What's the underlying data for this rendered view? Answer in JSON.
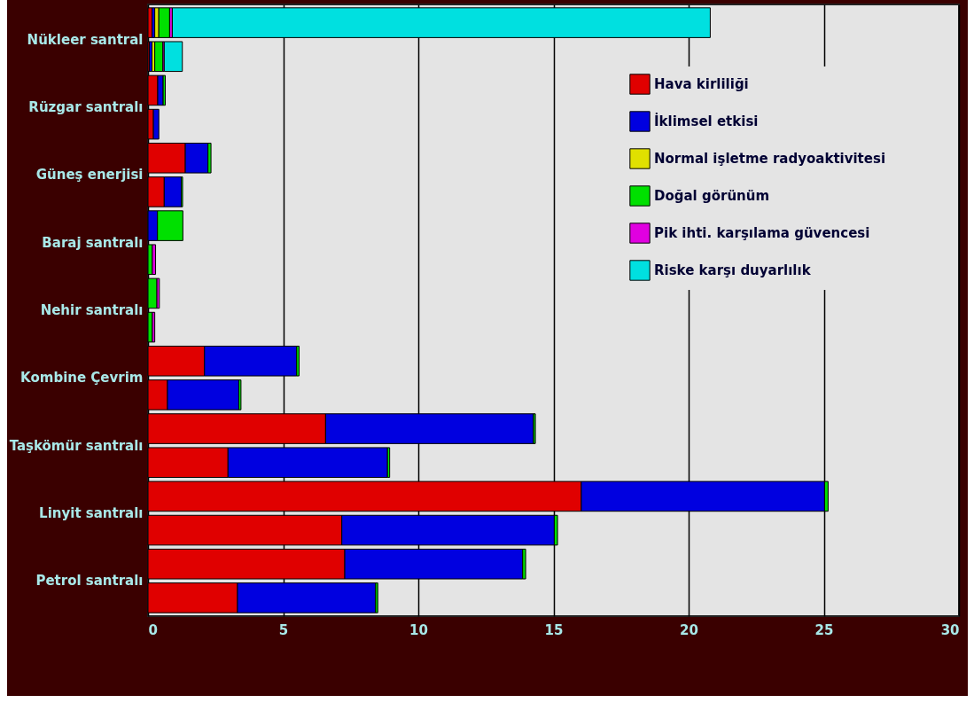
{
  "chart_data": {
    "type": "bar",
    "orientation": "horizontal",
    "stacked": true,
    "categories": [
      "Nükleer santral",
      null,
      "Rüzgar santralı",
      null,
      "Güneş enerjisi",
      null,
      "Baraj santralı",
      null,
      "Nehir santralı",
      null,
      "Kombine Çevrim",
      null,
      "Taşkömür santralı",
      null,
      "Linyit santralı",
      null,
      "Petrol santralı",
      null
    ],
    "series": [
      {
        "name": "Hava kirliliği",
        "color": "#e00000",
        "values": [
          0.15,
          0.05,
          0.36,
          0.2,
          1.38,
          0.6,
          null,
          null,
          null,
          null,
          2.09,
          0.72,
          6.57,
          2.96,
          16.03,
          7.17,
          7.28,
          3.31
        ]
      },
      {
        "name": "İklimsel etkisi",
        "color": "#0000e0",
        "values": [
          0.1,
          0.1,
          0.2,
          0.2,
          0.84,
          0.63,
          0.35,
          null,
          null,
          null,
          3.41,
          2.64,
          7.69,
          5.9,
          9.0,
          7.86,
          6.58,
          5.11
        ]
      },
      {
        "name": "Normal işletme radyoaktivitesi",
        "color": "#e0e000",
        "values": [
          0.15,
          0.1,
          null,
          null,
          null,
          null,
          null,
          null,
          null,
          null,
          null,
          null,
          null,
          null,
          null,
          null,
          null,
          null
        ]
      },
      {
        "name": "Doğal görünüm",
        "color": "#00e000",
        "values": [
          0.4,
          0.3,
          0.08,
          null,
          0.11,
          0.05,
          0.94,
          0.16,
          0.33,
          0.16,
          0.09,
          0.08,
          0.07,
          0.08,
          0.13,
          0.12,
          0.11,
          0.08
        ]
      },
      {
        "name": "Pik ihti. karşılama güvencesi",
        "color": "#e000e0",
        "values": [
          0.1,
          0.05,
          null,
          null,
          null,
          null,
          null,
          0.12,
          0.09,
          0.09,
          null,
          null,
          null,
          null,
          null,
          null,
          null,
          null
        ]
      },
      {
        "name": "Riske karşı duyarlılık",
        "color": "#00e0e0",
        "values": [
          19.9,
          0.67,
          null,
          null,
          null,
          null,
          null,
          null,
          null,
          null,
          null,
          null,
          null,
          null,
          null,
          null,
          null,
          null
        ]
      }
    ],
    "xlim": [
      0,
      30
    ],
    "xticks": [
      0,
      5,
      10,
      15,
      20,
      25,
      30
    ],
    "grid": "x",
    "legend": "top right"
  }
}
